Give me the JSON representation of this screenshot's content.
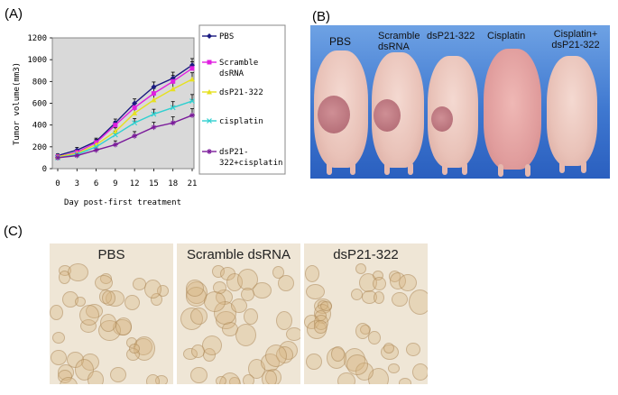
{
  "panels": {
    "a": "(A)",
    "b": "(B)",
    "c": "(C)"
  },
  "chart_data": {
    "type": "line",
    "title": "",
    "xlabel": "Day post-first treatment",
    "ylabel": "Tumor volume(mm3)",
    "x": [
      0,
      3,
      6,
      9,
      12,
      15,
      18,
      21
    ],
    "xlim": [
      0,
      21
    ],
    "ylim": [
      0,
      1200
    ],
    "yticks": [
      0,
      200,
      400,
      600,
      800,
      1000,
      1200
    ],
    "grid": false,
    "legend": "right",
    "series": [
      {
        "name": "PBS",
        "color": "#1a1a80",
        "marker": "diamond",
        "values": [
          120,
          170,
          250,
          420,
          600,
          750,
          830,
          950
        ]
      },
      {
        "name": "Scramble dsRNA",
        "color": "#e020e0",
        "marker": "square",
        "values": [
          110,
          150,
          240,
          400,
          560,
          690,
          800,
          920
        ]
      },
      {
        "name": "dsP21-322",
        "color": "#e6e020",
        "marker": "triangle",
        "values": [
          110,
          140,
          220,
          340,
          510,
          630,
          730,
          820
        ]
      },
      {
        "name": "cisplatin",
        "color": "#30d0d0",
        "marker": "x",
        "values": [
          100,
          130,
          200,
          310,
          420,
          500,
          560,
          620
        ]
      },
      {
        "name": "dsP21-322+cisplatin",
        "color": "#7a1a9a",
        "marker": "star",
        "values": [
          100,
          120,
          170,
          220,
          300,
          380,
          420,
          490
        ]
      }
    ],
    "error": [
      15,
      25,
      30,
      35,
      40,
      45,
      55,
      60
    ]
  },
  "photo": {
    "labels": [
      "PBS",
      "Scramble dsRNA",
      "dsP21-322",
      "Cisplatin",
      "Cisplatin+ dsP21-322"
    ]
  },
  "micrographs": {
    "labels": [
      "PBS",
      "Scramble dsRNA",
      "dsP21-322"
    ]
  }
}
